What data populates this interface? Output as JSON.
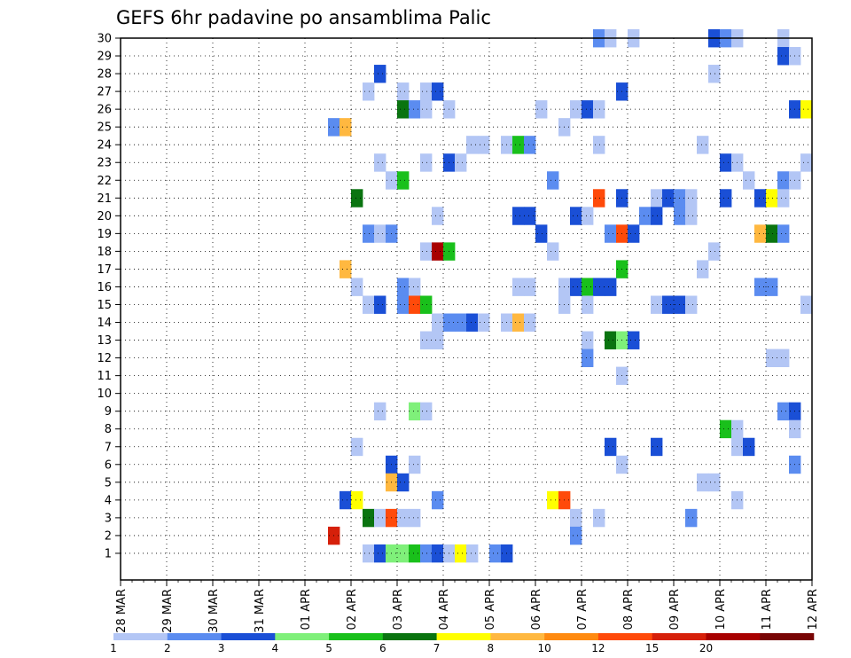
{
  "chart_data": {
    "type": "heatmap",
    "title": "GEFS 6hr padavine po ansamblima Palic",
    "x_tick_labels": [
      "28 MAR",
      "29 MAR",
      "30 MAR",
      "31 MAR",
      "01 APR",
      "02 APR",
      "03 APR",
      "04 APR",
      "05 APR",
      "06 APR",
      "07 APR",
      "08 APR",
      "09 APR",
      "10 APR",
      "11 APR",
      "12 APR"
    ],
    "y_tick_labels": [
      "1",
      "2",
      "3",
      "4",
      "5",
      "6",
      "7",
      "8",
      "9",
      "10",
      "11",
      "12",
      "13",
      "14",
      "15",
      "16",
      "17",
      "18",
      "19",
      "20",
      "21",
      "22",
      "23",
      "24",
      "25",
      "26",
      "27",
      "28",
      "29",
      "30"
    ],
    "x_range_steps": [
      0,
      60
    ],
    "y_range_members": [
      0,
      30
    ],
    "grid": true,
    "colorbar": {
      "position": "bottom",
      "labels": [
        "1",
        "2",
        "3",
        "4",
        "5",
        "6",
        "7",
        "8",
        "10",
        "12",
        "15",
        "20"
      ],
      "colors": [
        "#b3c6f5",
        "#5b8cf0",
        "#1a4fd6",
        "#7ff07a",
        "#19c01b",
        "#0a7410",
        "#ffff00",
        "#ffb840",
        "#ff8a10",
        "#ff4a0a",
        "#d6200a",
        "#a80000",
        "#780404"
      ]
    },
    "cells": [
      [
        42,
        30,
        1
      ],
      [
        43,
        30,
        0
      ],
      [
        45,
        30,
        0
      ],
      [
        52,
        30,
        2
      ],
      [
        53,
        30,
        1
      ],
      [
        54,
        30,
        0
      ],
      [
        58,
        30,
        0
      ],
      [
        58,
        29,
        2
      ],
      [
        59,
        29,
        0
      ],
      [
        23,
        28,
        2
      ],
      [
        52,
        28,
        0
      ],
      [
        22,
        27,
        0
      ],
      [
        25,
        27,
        0
      ],
      [
        27,
        27,
        0
      ],
      [
        28,
        27,
        2
      ],
      [
        44,
        27,
        2
      ],
      [
        25,
        26,
        5
      ],
      [
        26,
        26,
        1
      ],
      [
        27,
        26,
        0
      ],
      [
        29,
        26,
        0
      ],
      [
        37,
        26,
        0
      ],
      [
        40,
        26,
        0
      ],
      [
        41,
        26,
        2
      ],
      [
        42,
        26,
        0
      ],
      [
        59,
        26,
        2
      ],
      [
        60,
        26,
        6
      ],
      [
        19,
        25,
        1
      ],
      [
        20,
        25,
        7
      ],
      [
        39,
        25,
        0
      ],
      [
        31,
        24,
        0
      ],
      [
        32,
        24,
        0
      ],
      [
        34,
        24,
        0
      ],
      [
        35,
        24,
        4
      ],
      [
        36,
        24,
        1
      ],
      [
        42,
        24,
        0
      ],
      [
        51,
        24,
        0
      ],
      [
        23,
        23,
        0
      ],
      [
        27,
        23,
        0
      ],
      [
        29,
        23,
        2
      ],
      [
        30,
        23,
        0
      ],
      [
        53,
        23,
        2
      ],
      [
        54,
        23,
        0
      ],
      [
        60,
        23,
        0
      ],
      [
        24,
        22,
        0
      ],
      [
        25,
        22,
        4
      ],
      [
        38,
        22,
        1
      ],
      [
        55,
        22,
        0
      ],
      [
        58,
        22,
        1
      ],
      [
        59,
        22,
        0
      ],
      [
        21,
        21,
        5
      ],
      [
        42,
        21,
        9
      ],
      [
        44,
        21,
        2
      ],
      [
        47,
        21,
        0
      ],
      [
        48,
        21,
        2
      ],
      [
        49,
        21,
        1
      ],
      [
        50,
        21,
        0
      ],
      [
        53,
        21,
        2
      ],
      [
        56,
        21,
        2
      ],
      [
        57,
        21,
        6
      ],
      [
        58,
        21,
        0
      ],
      [
        28,
        20,
        0
      ],
      [
        35,
        20,
        2
      ],
      [
        36,
        20,
        2
      ],
      [
        40,
        20,
        2
      ],
      [
        41,
        20,
        0
      ],
      [
        46,
        20,
        1
      ],
      [
        47,
        20,
        2
      ],
      [
        49,
        20,
        1
      ],
      [
        50,
        20,
        0
      ],
      [
        22,
        19,
        1
      ],
      [
        23,
        19,
        0
      ],
      [
        24,
        19,
        1
      ],
      [
        37,
        19,
        2
      ],
      [
        43,
        19,
        1
      ],
      [
        44,
        19,
        9
      ],
      [
        45,
        19,
        2
      ],
      [
        56,
        19,
        7
      ],
      [
        57,
        19,
        5
      ],
      [
        58,
        19,
        1
      ],
      [
        27,
        18,
        0
      ],
      [
        28,
        18,
        11
      ],
      [
        29,
        18,
        4
      ],
      [
        38,
        18,
        0
      ],
      [
        52,
        18,
        0
      ],
      [
        20,
        17,
        7
      ],
      [
        44,
        17,
        4
      ],
      [
        51,
        17,
        0
      ],
      [
        21,
        16,
        0
      ],
      [
        25,
        16,
        1
      ],
      [
        26,
        16,
        0
      ],
      [
        35,
        16,
        0
      ],
      [
        36,
        16,
        0
      ],
      [
        39,
        16,
        0
      ],
      [
        40,
        16,
        2
      ],
      [
        41,
        16,
        4
      ],
      [
        42,
        16,
        2
      ],
      [
        43,
        16,
        2
      ],
      [
        56,
        16,
        1
      ],
      [
        57,
        16,
        1
      ],
      [
        22,
        15,
        0
      ],
      [
        23,
        15,
        2
      ],
      [
        25,
        15,
        1
      ],
      [
        26,
        15,
        9
      ],
      [
        27,
        15,
        4
      ],
      [
        39,
        15,
        0
      ],
      [
        41,
        15,
        0
      ],
      [
        47,
        15,
        0
      ],
      [
        48,
        15,
        2
      ],
      [
        49,
        15,
        2
      ],
      [
        50,
        15,
        0
      ],
      [
        60,
        15,
        0
      ],
      [
        28,
        14,
        0
      ],
      [
        29,
        14,
        1
      ],
      [
        30,
        14,
        1
      ],
      [
        31,
        14,
        2
      ],
      [
        32,
        14,
        0
      ],
      [
        34,
        14,
        0
      ],
      [
        35,
        14,
        7
      ],
      [
        36,
        14,
        0
      ],
      [
        27,
        13,
        0
      ],
      [
        28,
        13,
        0
      ],
      [
        41,
        13,
        0
      ],
      [
        43,
        13,
        5
      ],
      [
        44,
        13,
        3
      ],
      [
        45,
        13,
        2
      ],
      [
        41,
        12,
        1
      ],
      [
        57,
        12,
        0
      ],
      [
        58,
        12,
        0
      ],
      [
        44,
        11,
        0
      ],
      [
        23,
        9,
        0
      ],
      [
        26,
        9,
        3
      ],
      [
        27,
        9,
        0
      ],
      [
        58,
        9,
        1
      ],
      [
        59,
        9,
        2
      ],
      [
        53,
        8,
        4
      ],
      [
        54,
        8,
        0
      ],
      [
        59,
        8,
        0
      ],
      [
        21,
        7,
        0
      ],
      [
        43,
        7,
        2
      ],
      [
        47,
        7,
        2
      ],
      [
        54,
        7,
        0
      ],
      [
        55,
        7,
        2
      ],
      [
        24,
        6,
        2
      ],
      [
        26,
        6,
        0
      ],
      [
        44,
        6,
        0
      ],
      [
        59,
        6,
        1
      ],
      [
        24,
        5,
        7
      ],
      [
        25,
        5,
        2
      ],
      [
        51,
        5,
        0
      ],
      [
        52,
        5,
        0
      ],
      [
        20,
        4,
        2
      ],
      [
        21,
        4,
        6
      ],
      [
        28,
        4,
        1
      ],
      [
        38,
        4,
        6
      ],
      [
        39,
        4,
        9
      ],
      [
        54,
        4,
        0
      ],
      [
        22,
        3,
        5
      ],
      [
        23,
        3,
        0
      ],
      [
        24,
        3,
        9
      ],
      [
        25,
        3,
        0
      ],
      [
        26,
        3,
        0
      ],
      [
        40,
        3,
        0
      ],
      [
        42,
        3,
        0
      ],
      [
        50,
        3,
        1
      ],
      [
        19,
        2,
        10
      ],
      [
        40,
        2,
        1
      ],
      [
        22,
        1,
        0
      ],
      [
        23,
        1,
        2
      ],
      [
        24,
        1,
        3
      ],
      [
        25,
        1,
        3
      ],
      [
        26,
        1,
        4
      ],
      [
        27,
        1,
        1
      ],
      [
        28,
        1,
        2
      ],
      [
        29,
        1,
        0
      ],
      [
        30,
        1,
        6
      ],
      [
        31,
        1,
        0
      ],
      [
        33,
        1,
        1
      ],
      [
        34,
        1,
        2
      ]
    ]
  }
}
